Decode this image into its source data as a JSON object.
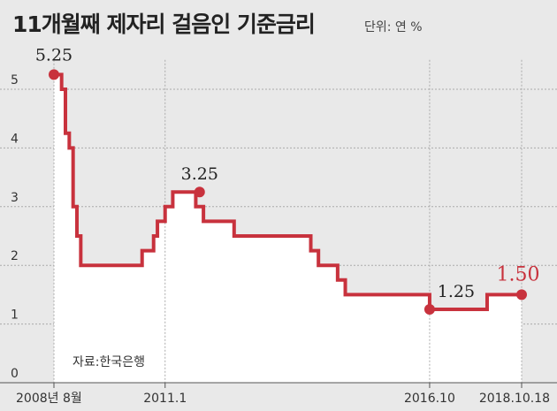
{
  "header": {
    "title": "11개월째 제자리 걸음인 기준금리",
    "unit": "단위: 연 %"
  },
  "source": "자료:한국은행",
  "colors": {
    "line": "#c8323d",
    "area": "#ffffff",
    "background": "#e9e9e9",
    "grid": "#aaaaaa"
  },
  "chart_data": {
    "type": "line",
    "title": "11개월째 제자리 걸음인 기준금리",
    "ylabel": "",
    "xlabel": "",
    "ylim": [
      0,
      5.5
    ],
    "yticks": [
      0,
      1,
      2,
      3,
      4,
      5
    ],
    "grid": true,
    "x_tick_labels": [
      {
        "t": 0,
        "label": "2008년 8월"
      },
      {
        "t": 29,
        "label": "2011.1"
      },
      {
        "t": 98,
        "label": "2016.10"
      },
      {
        "t": 122,
        "label": "2018.10.18"
      }
    ],
    "series": [
      {
        "points": [
          [
            0,
            5.25
          ],
          [
            2,
            5.0
          ],
          [
            3,
            4.25
          ],
          [
            4,
            4.0
          ],
          [
            5,
            3.0
          ],
          [
            6,
            2.5
          ],
          [
            7,
            2.0
          ],
          [
            23,
            2.25
          ],
          [
            26,
            2.5
          ],
          [
            27,
            2.75
          ],
          [
            29,
            3.0
          ],
          [
            31,
            3.25
          ],
          [
            37,
            3.0
          ],
          [
            39,
            2.75
          ],
          [
            47,
            2.5
          ],
          [
            67,
            2.25
          ],
          [
            69,
            2.0
          ],
          [
            74,
            1.75
          ],
          [
            76,
            1.5
          ],
          [
            98,
            1.25
          ],
          [
            113,
            1.5
          ],
          [
            122,
            1.5
          ]
        ]
      }
    ],
    "annotations": [
      {
        "x": 0,
        "y": 5.25,
        "label": "5.25"
      },
      {
        "x": 38,
        "y": 3.25,
        "label": "3.25"
      },
      {
        "x": 98,
        "y": 1.25,
        "label": "1.25"
      },
      {
        "x": 122,
        "y": 1.5,
        "label": "1.50",
        "accent": true
      }
    ]
  }
}
